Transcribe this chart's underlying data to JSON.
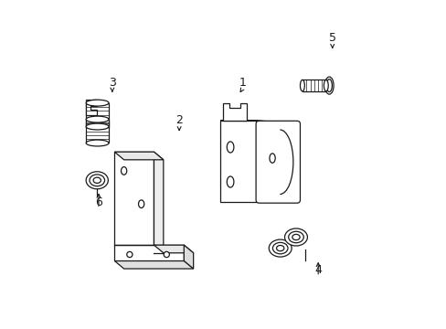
{
  "bg_color": "#ffffff",
  "line_color": "#1a1a1a",
  "figsize": [
    4.89,
    3.6
  ],
  "dpi": 100,
  "label_configs": [
    [
      1,
      0.56,
      0.76,
      0.548,
      0.72
    ],
    [
      2,
      0.36,
      0.64,
      0.36,
      0.605
    ],
    [
      3,
      0.148,
      0.76,
      0.148,
      0.72
    ],
    [
      4,
      0.8,
      0.165,
      0.8,
      0.2
    ],
    [
      5,
      0.845,
      0.9,
      0.845,
      0.858
    ],
    [
      6,
      0.105,
      0.38,
      0.105,
      0.418
    ]
  ]
}
